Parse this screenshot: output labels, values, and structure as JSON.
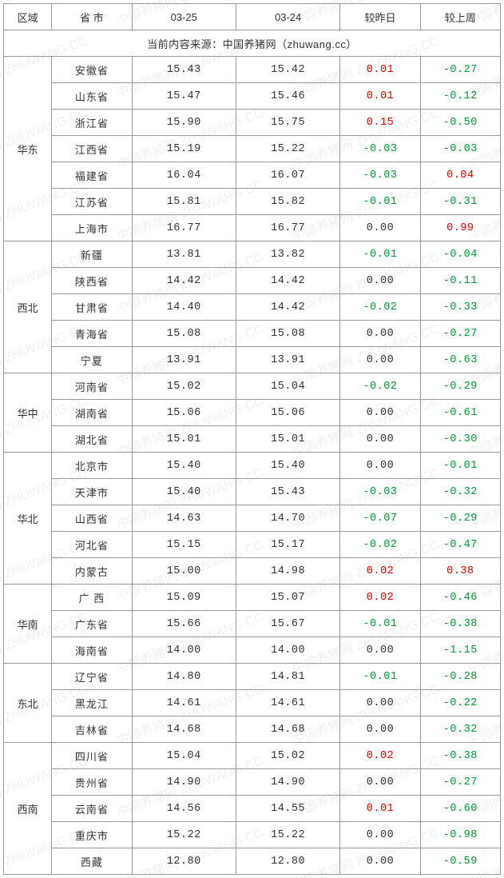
{
  "header": {
    "region": "区域",
    "province": "省 市",
    "date1": "03-25",
    "date2": "03-24",
    "vs_yesterday": "较昨日",
    "vs_lastweek": "较上周"
  },
  "source_text": "当前内容来源：中国养猪网（zhuwang.cc）",
  "watermark_text": "中国养猪网 ZHUWANG.CC",
  "colors": {
    "positive": "#e60000",
    "negative": "#009933",
    "neutral": "#333333",
    "border": "#999999",
    "background": "#ffffff"
  },
  "regions": [
    {
      "name": "华东",
      "rows": [
        {
          "prov": "安徽省",
          "d1": "15.43",
          "d2": "15.42",
          "dy": "0.01",
          "dw": "-0.27"
        },
        {
          "prov": "山东省",
          "d1": "15.47",
          "d2": "15.46",
          "dy": "0.01",
          "dw": "-0.12"
        },
        {
          "prov": "浙江省",
          "d1": "15.90",
          "d2": "15.75",
          "dy": "0.15",
          "dw": "-0.50"
        },
        {
          "prov": "江西省",
          "d1": "15.19",
          "d2": "15.22",
          "dy": "-0.03",
          "dw": "-0.03"
        },
        {
          "prov": "福建省",
          "d1": "16.04",
          "d2": "16.07",
          "dy": "-0.03",
          "dw": "0.04"
        },
        {
          "prov": "江苏省",
          "d1": "15.81",
          "d2": "15.82",
          "dy": "-0.01",
          "dw": "-0.31"
        },
        {
          "prov": "上海市",
          "d1": "16.77",
          "d2": "16.77",
          "dy": "0.00",
          "dw": "0.99"
        }
      ]
    },
    {
      "name": "西北",
      "rows": [
        {
          "prov": "新疆",
          "d1": "13.81",
          "d2": "13.82",
          "dy": "-0.01",
          "dw": "-0.04"
        },
        {
          "prov": "陕西省",
          "d1": "14.42",
          "d2": "14.42",
          "dy": "0.00",
          "dw": "-0.11"
        },
        {
          "prov": "甘肃省",
          "d1": "14.40",
          "d2": "14.42",
          "dy": "-0.02",
          "dw": "-0.33"
        },
        {
          "prov": "青海省",
          "d1": "15.08",
          "d2": "15.08",
          "dy": "0.00",
          "dw": "-0.27"
        },
        {
          "prov": "宁夏",
          "d1": "13.91",
          "d2": "13.91",
          "dy": "0.00",
          "dw": "-0.63"
        }
      ]
    },
    {
      "name": "华中",
      "rows": [
        {
          "prov": "河南省",
          "d1": "15.02",
          "d2": "15.04",
          "dy": "-0.02",
          "dw": "-0.29"
        },
        {
          "prov": "湖南省",
          "d1": "15.06",
          "d2": "15.06",
          "dy": "0.00",
          "dw": "-0.61"
        },
        {
          "prov": "湖北省",
          "d1": "15.01",
          "d2": "15.01",
          "dy": "0.00",
          "dw": "-0.30"
        }
      ]
    },
    {
      "name": "华北",
      "rows": [
        {
          "prov": "北京市",
          "d1": "15.40",
          "d2": "15.40",
          "dy": "0.00",
          "dw": "-0.01"
        },
        {
          "prov": "天津市",
          "d1": "15.40",
          "d2": "15.43",
          "dy": "-0.03",
          "dw": "-0.32"
        },
        {
          "prov": "山西省",
          "d1": "14.63",
          "d2": "14.70",
          "dy": "-0.07",
          "dw": "-0.29"
        },
        {
          "prov": "河北省",
          "d1": "15.15",
          "d2": "15.17",
          "dy": "-0.02",
          "dw": "-0.47"
        },
        {
          "prov": "内蒙古",
          "d1": "15.00",
          "d2": "14.98",
          "dy": "0.02",
          "dw": "0.38"
        }
      ]
    },
    {
      "name": "华南",
      "rows": [
        {
          "prov": "广 西",
          "d1": "15.09",
          "d2": "15.07",
          "dy": "0.02",
          "dw": "-0.46"
        },
        {
          "prov": "广东省",
          "d1": "15.66",
          "d2": "15.67",
          "dy": "-0.01",
          "dw": "-0.38"
        },
        {
          "prov": "海南省",
          "d1": "14.00",
          "d2": "14.00",
          "dy": "0.00",
          "dw": "-1.15"
        }
      ]
    },
    {
      "name": "东北",
      "rows": [
        {
          "prov": "辽宁省",
          "d1": "14.80",
          "d2": "14.81",
          "dy": "-0.01",
          "dw": "-0.28"
        },
        {
          "prov": "黑龙江",
          "d1": "14.61",
          "d2": "14.61",
          "dy": "0.00",
          "dw": "-0.22"
        },
        {
          "prov": "吉林省",
          "d1": "14.68",
          "d2": "14.68",
          "dy": "0.00",
          "dw": "-0.32"
        }
      ]
    },
    {
      "name": "西南",
      "rows": [
        {
          "prov": "四川省",
          "d1": "15.04",
          "d2": "15.02",
          "dy": "0.02",
          "dw": "-0.38"
        },
        {
          "prov": "贵州省",
          "d1": "14.90",
          "d2": "14.90",
          "dy": "0.00",
          "dw": "-0.27"
        },
        {
          "prov": "云南省",
          "d1": "14.56",
          "d2": "14.55",
          "dy": "0.01",
          "dw": "-0.60"
        },
        {
          "prov": "重庆市",
          "d1": "15.22",
          "d2": "15.22",
          "dy": "0.00",
          "dw": "-0.98"
        },
        {
          "prov": "西藏",
          "d1": "12.80",
          "d2": "12.80",
          "dy": "0.00",
          "dw": "-0.59"
        }
      ]
    }
  ]
}
